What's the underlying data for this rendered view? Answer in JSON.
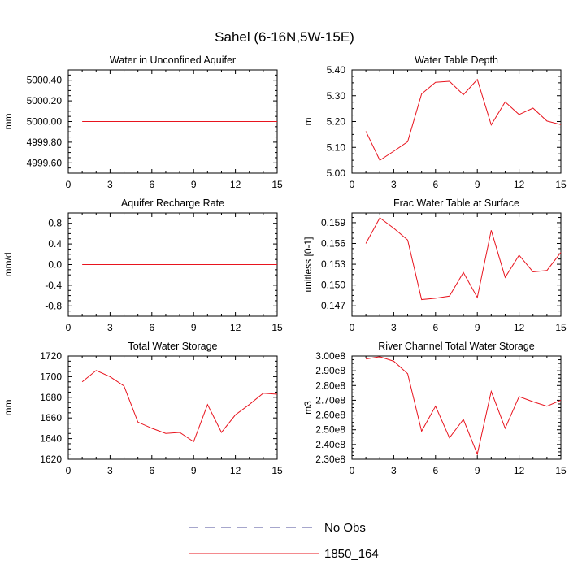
{
  "title": "Sahel (6-16N,5W-15E)",
  "legend": [
    {
      "label": "No Obs",
      "color": "#4c4c9a",
      "dash": "dashed"
    },
    {
      "label": "1850_164",
      "color": "#e8141e",
      "dash": "solid"
    }
  ],
  "chart_data": [
    {
      "type": "line",
      "title": "Water in Unconfined Aquifer",
      "ylabel": "mm",
      "xlim": [
        0,
        15
      ],
      "ylim": [
        4999.5,
        5000.5
      ],
      "xticks": [
        0,
        3,
        6,
        9,
        12,
        15
      ],
      "yticks": [
        4999.6,
        4999.8,
        5000.0,
        5000.2,
        5000.4
      ],
      "ytick_labels": [
        "4999.60",
        "4999.80",
        "5000.00",
        "5000.20",
        "5000.40"
      ],
      "x": [
        1,
        2,
        3,
        4,
        5,
        6,
        7,
        8,
        9,
        10,
        11,
        12,
        13,
        14,
        15
      ],
      "series": [
        {
          "name": "1850_164",
          "color": "#e8141e",
          "values": [
            5000,
            5000,
            5000,
            5000,
            5000,
            5000,
            5000,
            5000,
            5000,
            5000,
            5000,
            5000,
            5000,
            5000,
            5000
          ]
        }
      ]
    },
    {
      "type": "line",
      "title": "Water Table Depth",
      "ylabel": "m",
      "xlim": [
        0,
        15
      ],
      "ylim": [
        5.0,
        5.4
      ],
      "xticks": [
        0,
        3,
        6,
        9,
        12,
        15
      ],
      "yticks": [
        5.0,
        5.1,
        5.2,
        5.3,
        5.4
      ],
      "ytick_labels": [
        "5.00",
        "5.10",
        "5.20",
        "5.30",
        "5.40"
      ],
      "x": [
        1,
        2,
        3,
        4,
        5,
        6,
        7,
        8,
        9,
        10,
        11,
        12,
        13,
        14,
        15
      ],
      "series": [
        {
          "name": "1850_164",
          "color": "#e8141e",
          "values": [
            5.162,
            5.05,
            5.085,
            5.122,
            5.307,
            5.352,
            5.356,
            5.304,
            5.363,
            5.187,
            5.276,
            5.227,
            5.252,
            5.202,
            5.188
          ]
        }
      ]
    },
    {
      "type": "line",
      "title": "Aquifer Recharge Rate",
      "ylabel": "mm/d",
      "xlim": [
        0,
        15
      ],
      "ylim": [
        -1.0,
        1.0
      ],
      "xticks": [
        0,
        3,
        6,
        9,
        12,
        15
      ],
      "yticks": [
        -0.8,
        -0.4,
        0.0,
        0.4,
        0.8
      ],
      "ytick_labels": [
        "-0.8",
        "-0.4",
        "0.0",
        "0.4",
        "0.8"
      ],
      "x": [
        1,
        2,
        3,
        4,
        5,
        6,
        7,
        8,
        9,
        10,
        11,
        12,
        13,
        14,
        15
      ],
      "series": [
        {
          "name": "1850_164",
          "color": "#e8141e",
          "values": [
            0,
            0,
            0,
            0,
            0,
            0,
            0,
            0,
            0,
            0,
            0,
            0,
            0,
            0,
            0
          ]
        }
      ]
    },
    {
      "type": "line",
      "title": "Frac Water Table at Surface",
      "ylabel": "unitless [0-1]",
      "xlim": [
        0,
        15
      ],
      "ylim": [
        0.1455,
        0.1604
      ],
      "xticks": [
        0,
        3,
        6,
        9,
        12,
        15
      ],
      "yticks": [
        0.147,
        0.15,
        0.153,
        0.156,
        0.159
      ],
      "ytick_labels": [
        "0.147",
        "0.150",
        "0.153",
        "0.156",
        "0.159"
      ],
      "x": [
        1,
        2,
        3,
        4,
        5,
        6,
        7,
        8,
        9,
        10,
        11,
        12,
        13,
        14,
        15
      ],
      "series": [
        {
          "name": "1850_164",
          "color": "#e8141e",
          "values": [
            0.156,
            0.1597,
            0.1582,
            0.1565,
            0.1479,
            0.1481,
            0.1484,
            0.1518,
            0.1482,
            0.1579,
            0.1511,
            0.1543,
            0.1519,
            0.1521,
            0.1547
          ]
        }
      ]
    },
    {
      "type": "line",
      "title": "Total Water Storage",
      "ylabel": "mm",
      "xlim": [
        0,
        15
      ],
      "ylim": [
        1620,
        1720
      ],
      "xticks": [
        0,
        3,
        6,
        9,
        12,
        15
      ],
      "yticks": [
        1620,
        1640,
        1660,
        1680,
        1700,
        1720
      ],
      "ytick_labels": [
        "1620",
        "1640",
        "1660",
        "1680",
        "1700",
        "1720"
      ],
      "x": [
        1,
        2,
        3,
        4,
        5,
        6,
        7,
        8,
        9,
        10,
        11,
        12,
        13,
        14,
        15
      ],
      "series": [
        {
          "name": "1850_164",
          "color": "#e8141e",
          "values": [
            1695,
            1706,
            1700,
            1691,
            1656,
            1650,
            1645,
            1646,
            1637,
            1673,
            1646,
            1663,
            1673,
            1684,
            1683
          ]
        }
      ]
    },
    {
      "type": "line",
      "title": "River Channel Total Water Storage",
      "ylabel": "m3",
      "xlim": [
        0,
        15
      ],
      "ylim": [
        230000000.0,
        300000000.0
      ],
      "xticks": [
        0,
        3,
        6,
        9,
        12,
        15
      ],
      "yticks": [
        230000000.0,
        240000000.0,
        250000000.0,
        260000000.0,
        270000000.0,
        280000000.0,
        290000000.0,
        300000000.0
      ],
      "ytick_labels": [
        "2.30e8",
        "2.40e8",
        "2.50e8",
        "2.60e8",
        "2.70e8",
        "2.80e8",
        "2.90e8",
        "3.00e8"
      ],
      "x": [
        1,
        2,
        3,
        4,
        5,
        6,
        7,
        8,
        9,
        10,
        11,
        12,
        13,
        14,
        15
      ],
      "series": [
        {
          "name": "1850_164",
          "color": "#e8141e",
          "values": [
            298000000.0,
            299500000.0,
            296500000.0,
            288000000.0,
            249000000.0,
            266000000.0,
            244500000.0,
            257000000.0,
            233500000.0,
            276000000.0,
            251000000.0,
            272500000.0,
            269000000.0,
            266000000.0,
            270000000.0
          ]
        }
      ]
    }
  ]
}
